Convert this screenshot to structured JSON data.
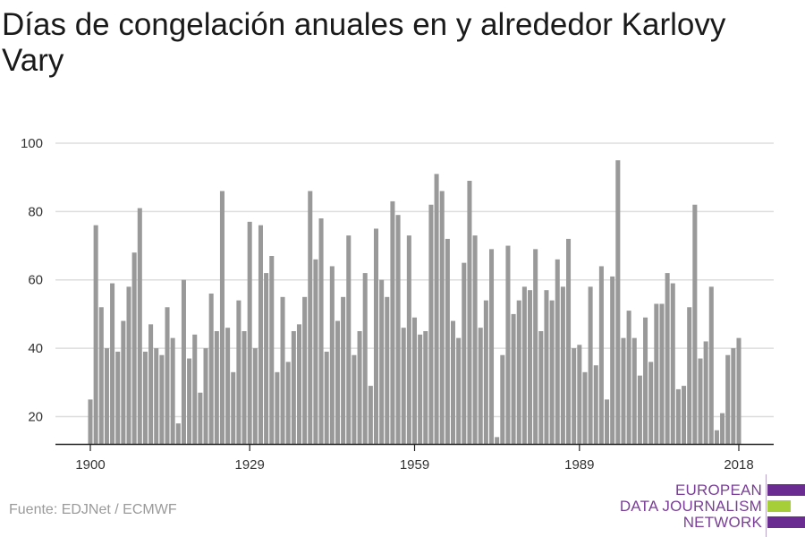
{
  "title": "Días de congelación anuales en y alrededor Karlovy Vary",
  "source": "Fuente: EDJNet / ECMWF",
  "logo": {
    "line1": "EUROPEAN",
    "line2": "DATA JOURNALISM",
    "line3": "NETWORK",
    "purple": "#6a2c91",
    "green": "#a6ce39"
  },
  "chart_data": {
    "type": "bar",
    "title": "Días de congelación anuales en y alrededor Karlovy Vary",
    "x_start": 1900,
    "x_end": 2018,
    "values": [
      25,
      76,
      52,
      40,
      59,
      39,
      48,
      58,
      68,
      81,
      39,
      47,
      40,
      38,
      52,
      43,
      18,
      60,
      37,
      44,
      27,
      40,
      56,
      45,
      86,
      46,
      33,
      54,
      45,
      77,
      40,
      76,
      62,
      67,
      33,
      55,
      36,
      45,
      47,
      55,
      86,
      66,
      78,
      39,
      64,
      48,
      55,
      73,
      38,
      45,
      62,
      29,
      75,
      60,
      55,
      83,
      79,
      46,
      73,
      49,
      44,
      45,
      82,
      91,
      86,
      72,
      48,
      43,
      65,
      89,
      73,
      46,
      54,
      69,
      14,
      38,
      70,
      50,
      54,
      58,
      57,
      69,
      45,
      57,
      54,
      66,
      58,
      72,
      40,
      41,
      33,
      58,
      35,
      64,
      25,
      61,
      95,
      43,
      51,
      43,
      32,
      49,
      36,
      53,
      53,
      62,
      59,
      28,
      29,
      52,
      82,
      37,
      42,
      58,
      16,
      21,
      38,
      40,
      43
    ],
    "xticks": [
      "1900",
      "1929",
      "1959",
      "1989",
      "2018"
    ],
    "xtick_years": [
      1900,
      1929,
      1959,
      1989,
      2018
    ],
    "yticks": [
      "20",
      "40",
      "60",
      "80",
      "100"
    ],
    "ytick_values": [
      20,
      40,
      60,
      80,
      100
    ],
    "ylim": [
      12,
      100
    ],
    "bar_color": "#999999",
    "grid": true,
    "grid_color": "#dddddd",
    "axis_color": "#222222"
  }
}
